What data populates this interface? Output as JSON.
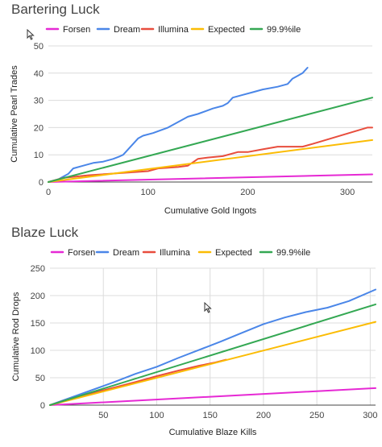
{
  "chart_data": [
    {
      "type": "line",
      "title": "Bartering Luck",
      "xlabel": "Cumulative Gold Ingots",
      "ylabel": "Cumulative Pearl Trades",
      "xlim": [
        0,
        325
      ],
      "ylim": [
        0,
        50
      ],
      "xticks": [
        0,
        100,
        200,
        300
      ],
      "yticks": [
        0,
        10,
        20,
        30,
        40,
        50
      ],
      "grid": "horizontal",
      "legend_position": "top",
      "series": [
        {
          "name": "Forsen",
          "color": "#e629d4",
          "x": [
            0,
            325
          ],
          "y": [
            0,
            2.8
          ]
        },
        {
          "name": "Dream",
          "color": "#4a86e8",
          "x": [
            0,
            5,
            10,
            20,
            25,
            35,
            45,
            55,
            65,
            70,
            72,
            75,
            80,
            90,
            95,
            105,
            120,
            130,
            140,
            150,
            165,
            175,
            180,
            185,
            195,
            205,
            215,
            230,
            240,
            245,
            250,
            255,
            260
          ],
          "y": [
            0,
            0.5,
            1,
            3,
            5,
            6,
            7,
            7.5,
            8.5,
            9.2,
            9.5,
            10,
            12,
            16,
            17,
            18,
            20,
            22,
            24,
            25,
            27,
            28,
            29,
            31,
            32,
            33,
            34,
            35,
            36,
            38,
            39,
            40,
            42
          ]
        },
        {
          "name": "Illumina",
          "color": "#e84d3d",
          "x": [
            0,
            15,
            40,
            80,
            100,
            110,
            130,
            140,
            150,
            160,
            175,
            190,
            200,
            215,
            230,
            255,
            265,
            320,
            325
          ],
          "y": [
            0,
            1.5,
            2.5,
            3.5,
            4,
            5,
            5.5,
            6,
            8.5,
            9,
            9.5,
            11,
            11,
            12,
            13,
            13,
            14,
            20,
            20
          ]
        },
        {
          "name": "Expected",
          "color": "#fbbc04",
          "x": [
            0,
            325
          ],
          "y": [
            0,
            15.4
          ]
        },
        {
          "name": "99.9%ile",
          "color": "#34a853",
          "x": [
            0,
            325
          ],
          "y": [
            0,
            31
          ]
        }
      ]
    },
    {
      "type": "line",
      "title": "Blaze Luck",
      "xlabel": "Cumulative Blaze Kills",
      "ylabel": "Cumulative Rod Drops",
      "xlim": [
        0,
        305
      ],
      "ylim": [
        0,
        250
      ],
      "xticks": [
        50,
        100,
        150,
        200,
        250,
        300
      ],
      "yticks": [
        0,
        50,
        100,
        150,
        200,
        250
      ],
      "grid": "both",
      "legend_position": "top",
      "series": [
        {
          "name": "Forsen",
          "color": "#e629d4",
          "x": [
            0,
            305
          ],
          "y": [
            0,
            31
          ]
        },
        {
          "name": "Dream",
          "color": "#4a86e8",
          "x": [
            0,
            20,
            40,
            60,
            80,
            100,
            120,
            140,
            160,
            180,
            200,
            220,
            240,
            260,
            280,
            305
          ],
          "y": [
            0,
            14,
            28,
            42,
            57,
            70,
            86,
            101,
            116,
            132,
            148,
            160,
            170,
            178,
            190,
            211
          ]
        },
        {
          "name": "Illumina",
          "color": "#e84d3d",
          "x": [
            0,
            20,
            40,
            60,
            80,
            100,
            120,
            140,
            155,
            165
          ],
          "y": [
            0,
            12,
            22,
            32,
            42,
            53,
            63,
            72,
            78,
            83
          ]
        },
        {
          "name": "Expected",
          "color": "#fbbc04",
          "x": [
            0,
            305
          ],
          "y": [
            0,
            152
          ]
        },
        {
          "name": "99.9%ile",
          "color": "#34a853",
          "x": [
            0,
            305
          ],
          "y": [
            0,
            184
          ]
        }
      ]
    }
  ]
}
